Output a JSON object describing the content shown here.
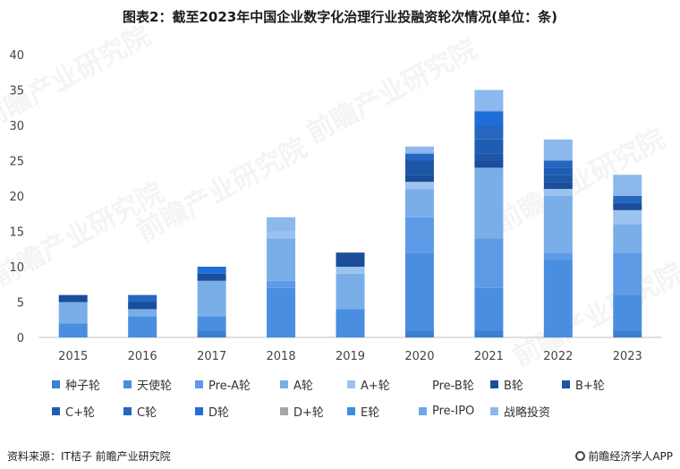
{
  "title": "图表2：截至2023年中国企业数字化治理行业投融资轮次情况(单位：条)",
  "source": "资料来源：IT桔子 前瞻产业研究院",
  "brand": "前瞻经济学人APP",
  "watermark": "前瞻产业研究院",
  "colors": {
    "种子轮": "#3d7fd4",
    "天使轮": "#4a8ee0",
    "Pre-A轮": "#5d9be6",
    "A轮": "#7aaee9",
    "A+轮": "#9cc3ef",
    "Pre-B轮": "",
    "B轮": "#1a4e9a",
    "B+轮": "#1d56a6",
    "C+轮": "#1f5db3",
    "C轮": "#2466c0",
    "D轮": "#1f6dd8",
    "D+轮": "#a6a6a6",
    "E轮": "#3d8ddc",
    "Pre-IPO": "#6fa6e6",
    "战略投资": "#8cb8ee"
  },
  "chart_data": {
    "type": "bar",
    "stacked": true,
    "title": "图表2：截至2023年中国企业数字化治理行业投融资轮次情况(单位：条)",
    "categories": [
      "2015",
      "2016",
      "2017",
      "2018",
      "2019",
      "2020",
      "2021",
      "2022",
      "2023"
    ],
    "ylim": [
      0,
      40
    ],
    "yticks": [
      0,
      5,
      10,
      15,
      20,
      25,
      30,
      35,
      40
    ],
    "grid": false,
    "legend": "bottom",
    "series": [
      {
        "name": "种子轮",
        "values": [
          0,
          0,
          1,
          0,
          0,
          1,
          1,
          0,
          1
        ]
      },
      {
        "name": "天使轮",
        "values": [
          2,
          3,
          2,
          7,
          4,
          11,
          6,
          11,
          5
        ]
      },
      {
        "name": "Pre-A轮",
        "values": [
          0,
          0,
          0,
          1,
          0,
          5,
          7,
          1,
          6
        ]
      },
      {
        "name": "A轮",
        "values": [
          3,
          1,
          5,
          6,
          5,
          4,
          10,
          8,
          4
        ]
      },
      {
        "name": "A+轮",
        "values": [
          0,
          0,
          0,
          1,
          1,
          1,
          0,
          1,
          2
        ]
      },
      {
        "name": "Pre-B轮",
        "values": [
          0,
          0,
          0,
          0,
          0,
          0,
          0,
          0,
          0
        ]
      },
      {
        "name": "B轮",
        "values": [
          1,
          1,
          1,
          0,
          2,
          1,
          1,
          1,
          1
        ]
      },
      {
        "name": "B+轮",
        "values": [
          0,
          0,
          0,
          0,
          0,
          2,
          1,
          1,
          0
        ]
      },
      {
        "name": "C+轮",
        "values": [
          0,
          0,
          0,
          0,
          0,
          0,
          2,
          1,
          0
        ]
      },
      {
        "name": "C轮",
        "values": [
          0,
          1,
          0,
          0,
          0,
          1,
          2,
          1,
          1
        ]
      },
      {
        "name": "D轮",
        "values": [
          0,
          0,
          1,
          0,
          0,
          0,
          2,
          0,
          0
        ]
      },
      {
        "name": "D+轮",
        "values": [
          0,
          0,
          0,
          0,
          0,
          0,
          0,
          0,
          0
        ]
      },
      {
        "name": "E轮",
        "values": [
          0,
          0,
          0,
          0,
          0,
          0,
          0,
          0,
          0
        ]
      },
      {
        "name": "Pre-IPO",
        "values": [
          0,
          0,
          0,
          0,
          0,
          0,
          0,
          0,
          0
        ]
      },
      {
        "name": "战略投资",
        "values": [
          0,
          0,
          0,
          2,
          0,
          1,
          3,
          3,
          3
        ]
      }
    ]
  }
}
